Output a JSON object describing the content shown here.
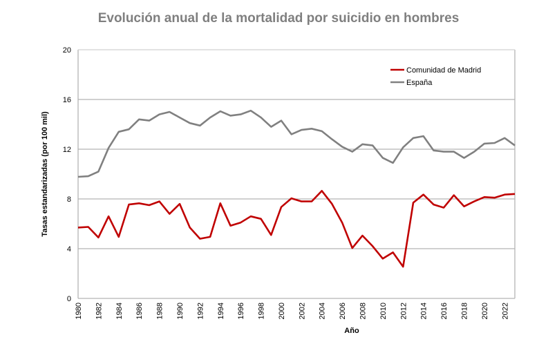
{
  "chart_data": {
    "type": "line",
    "title": "Evolución anual de la mortalidad por suicidio en hombres",
    "xlabel": "Año",
    "ylabel": "Tasas estandarizadas (por 100 mil)",
    "ylim": [
      0,
      20
    ],
    "yticks": [
      0,
      4,
      8,
      12,
      16,
      20
    ],
    "xlim": [
      1980,
      2023
    ],
    "xticks": [
      1980,
      1982,
      1984,
      1986,
      1988,
      1990,
      1992,
      1994,
      1996,
      1998,
      2000,
      2002,
      2004,
      2006,
      2008,
      2010,
      2012,
      2014,
      2016,
      2018,
      2020,
      2022
    ],
    "grid": "horizontal",
    "legend_position": "top-right",
    "x": [
      1980,
      1981,
      1982,
      1983,
      1984,
      1985,
      1986,
      1987,
      1988,
      1989,
      1990,
      1991,
      1992,
      1993,
      1994,
      1995,
      1996,
      1997,
      1998,
      1999,
      2000,
      2001,
      2002,
      2003,
      2004,
      2005,
      2006,
      2007,
      2008,
      2009,
      2010,
      2011,
      2012,
      2013,
      2014,
      2015,
      2016,
      2017,
      2018,
      2019,
      2020,
      2021,
      2022,
      2023
    ],
    "series": [
      {
        "name": "Comunidad de Madrid",
        "color": "#c00000",
        "values": [
          5.7,
          5.75,
          4.9,
          6.6,
          4.95,
          7.55,
          7.65,
          7.5,
          7.8,
          6.8,
          7.6,
          5.7,
          4.8,
          4.95,
          7.65,
          5.85,
          6.1,
          6.6,
          6.4,
          5.1,
          7.35,
          8.05,
          7.8,
          7.8,
          8.65,
          7.6,
          6.1,
          4.05,
          5.05,
          4.2,
          3.2,
          3.7,
          2.55,
          7.7,
          8.35,
          7.55,
          7.3,
          8.3,
          7.4,
          7.8,
          8.15,
          8.1,
          8.35,
          8.4
        ]
      },
      {
        "name": "España",
        "color": "#808080",
        "values": [
          9.78,
          9.83,
          10.2,
          12.1,
          13.4,
          13.6,
          14.4,
          14.3,
          14.8,
          15.0,
          14.55,
          14.1,
          13.9,
          14.55,
          15.05,
          14.7,
          14.8,
          15.1,
          14.55,
          13.8,
          14.3,
          13.2,
          13.55,
          13.65,
          13.45,
          12.8,
          12.2,
          11.8,
          12.4,
          12.3,
          11.3,
          10.9,
          12.15,
          12.9,
          13.05,
          11.9,
          11.8,
          11.8,
          11.3,
          11.8,
          12.45,
          12.5,
          12.9,
          12.3
        ]
      }
    ]
  }
}
